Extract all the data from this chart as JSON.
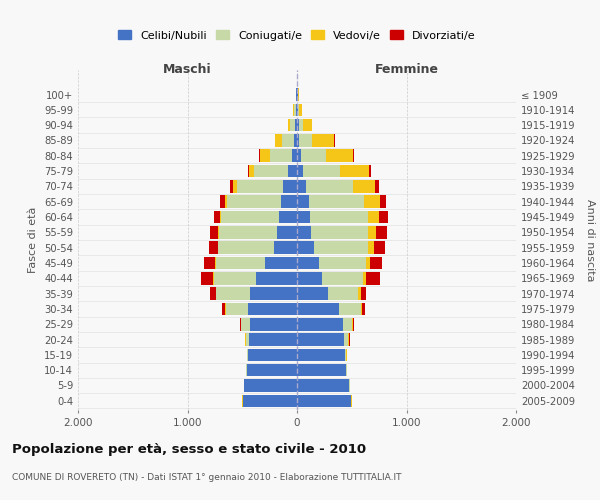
{
  "age_groups": [
    "0-4",
    "5-9",
    "10-14",
    "15-19",
    "20-24",
    "25-29",
    "30-34",
    "35-39",
    "40-44",
    "45-49",
    "50-54",
    "55-59",
    "60-64",
    "65-69",
    "70-74",
    "75-79",
    "80-84",
    "85-89",
    "90-94",
    "95-99",
    "100+"
  ],
  "birth_years": [
    "2005-2009",
    "2000-2004",
    "1995-1999",
    "1990-1994",
    "1985-1989",
    "1980-1984",
    "1975-1979",
    "1970-1974",
    "1965-1969",
    "1960-1964",
    "1955-1959",
    "1950-1954",
    "1945-1949",
    "1940-1944",
    "1935-1939",
    "1930-1934",
    "1925-1929",
    "1920-1924",
    "1915-1919",
    "1910-1914",
    "≤ 1909"
  ],
  "maschi": {
    "celibi": [
      490,
      480,
      460,
      450,
      440,
      430,
      450,
      430,
      370,
      290,
      210,
      185,
      160,
      150,
      130,
      80,
      50,
      30,
      20,
      10,
      5
    ],
    "coniugati": [
      5,
      5,
      5,
      5,
      30,
      80,
      200,
      310,
      390,
      450,
      510,
      530,
      530,
      490,
      420,
      310,
      200,
      110,
      40,
      15,
      5
    ],
    "vedovi": [
      3,
      3,
      3,
      3,
      3,
      3,
      3,
      3,
      3,
      5,
      5,
      10,
      10,
      20,
      30,
      50,
      90,
      60,
      20,
      10,
      3
    ],
    "divorziati": [
      0,
      0,
      0,
      0,
      5,
      10,
      30,
      50,
      110,
      100,
      80,
      70,
      60,
      40,
      30,
      10,
      5,
      0,
      0,
      0,
      0
    ]
  },
  "femmine": {
    "nubili": [
      490,
      475,
      450,
      440,
      430,
      420,
      380,
      280,
      230,
      200,
      155,
      130,
      120,
      110,
      80,
      55,
      35,
      20,
      15,
      5,
      5
    ],
    "coniugate": [
      5,
      5,
      5,
      10,
      40,
      80,
      200,
      280,
      370,
      430,
      490,
      520,
      530,
      500,
      430,
      340,
      230,
      120,
      40,
      10,
      5
    ],
    "vedove": [
      3,
      3,
      3,
      3,
      5,
      10,
      15,
      20,
      30,
      40,
      55,
      70,
      100,
      150,
      200,
      260,
      250,
      200,
      80,
      30,
      5
    ],
    "divorziate": [
      0,
      0,
      0,
      0,
      5,
      10,
      30,
      50,
      130,
      110,
      100,
      100,
      80,
      50,
      40,
      20,
      10,
      5,
      0,
      0,
      0
    ]
  },
  "colors": {
    "celibi": "#4472C4",
    "coniugati": "#c8d9a8",
    "vedovi": "#f5c518",
    "divorziati": "#cc0000"
  },
  "xlim": 2000,
  "title": "Popolazione per età, sesso e stato civile - 2010",
  "subtitle": "COMUNE DI ROVERETO (TN) - Dati ISTAT 1° gennaio 2010 - Elaborazione TUTTITALIA.IT",
  "ylabel_left": "Fasce di età",
  "ylabel_right": "Anni di nascita",
  "xlabel_left": "Maschi",
  "xlabel_right": "Femmine",
  "legend_labels": [
    "Celibi/Nubili",
    "Coniugati/e",
    "Vedovi/e",
    "Divorziati/e"
  ],
  "xticks": [
    -2000,
    -1000,
    0,
    1000,
    2000
  ],
  "xticklabels": [
    "2.000",
    "1.000",
    "0",
    "1.000",
    "2.000"
  ],
  "background_color": "#f5f5f5"
}
